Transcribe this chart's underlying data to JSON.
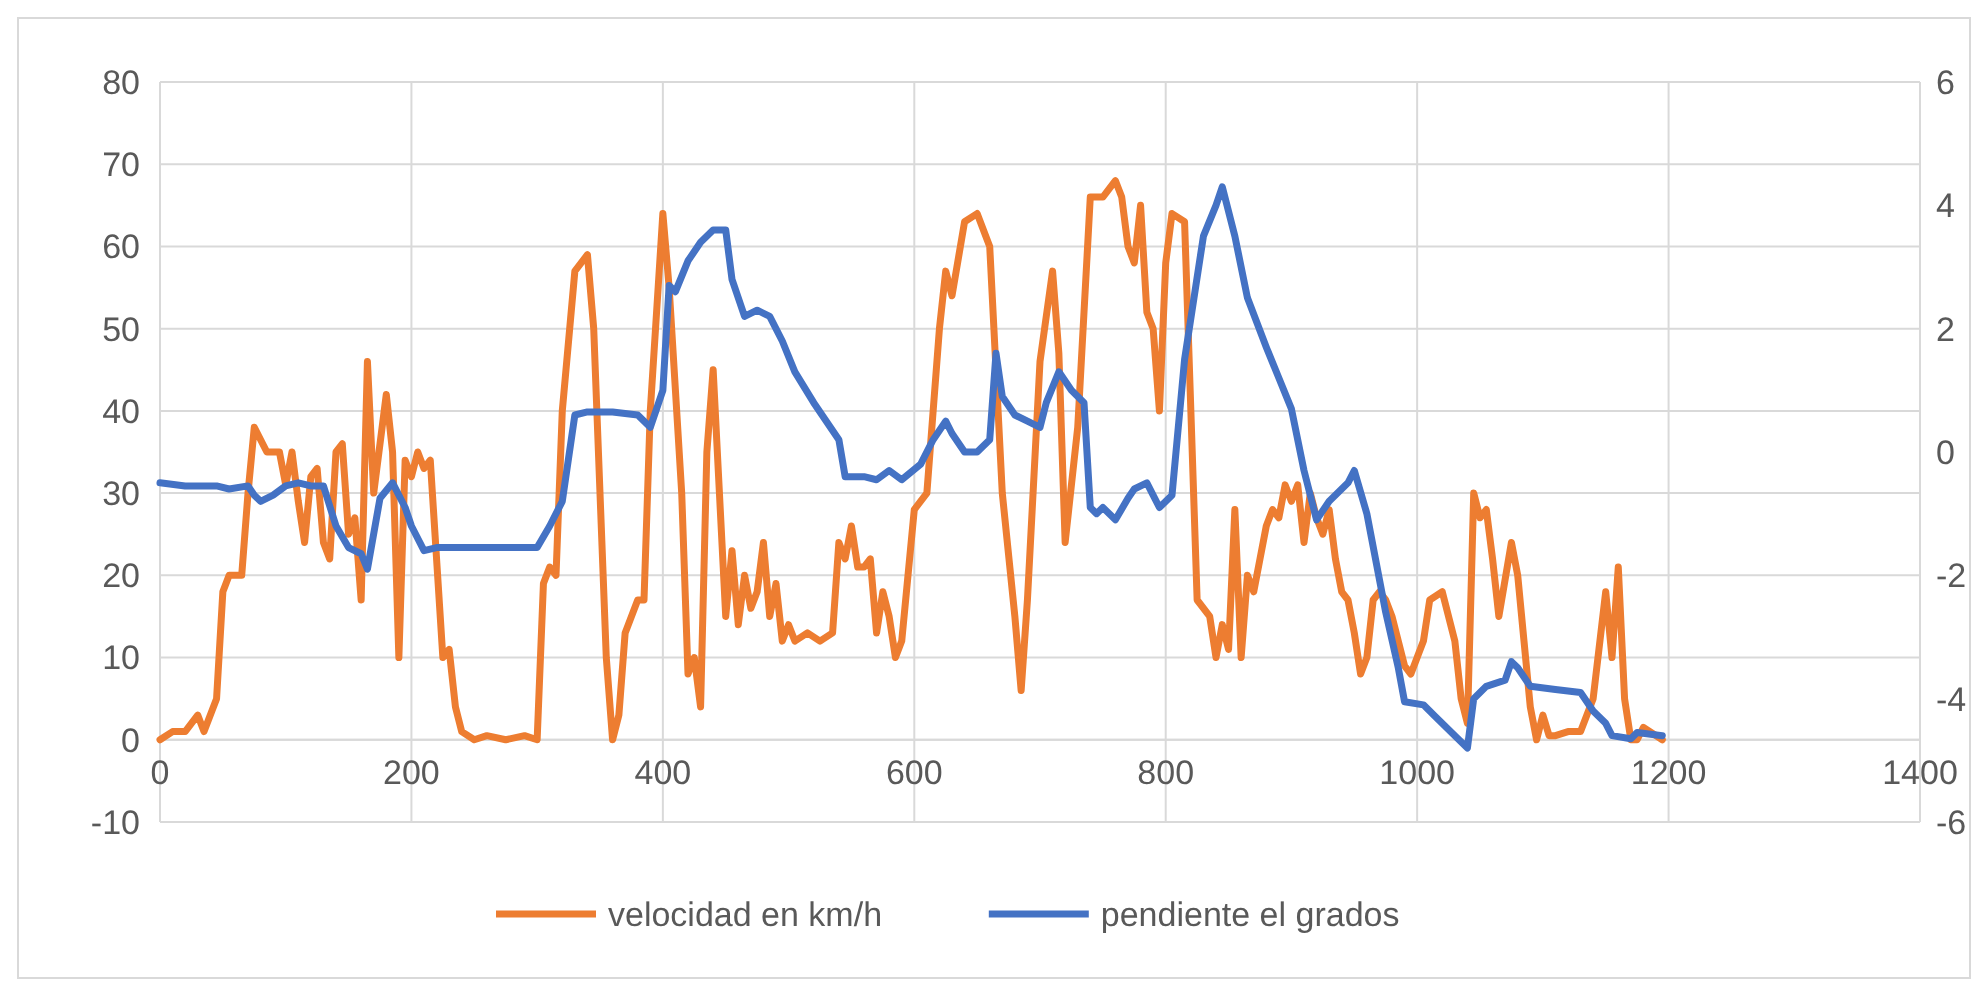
{
  "chart_data": {
    "type": "line",
    "xlim": [
      0,
      1400
    ],
    "xticks": [
      0,
      200,
      400,
      600,
      800,
      1000,
      1200,
      1400
    ],
    "ylim": [
      -10,
      80
    ],
    "yticks": [
      -10,
      0,
      10,
      20,
      30,
      40,
      50,
      60,
      70,
      80
    ],
    "y2lim": [
      -6,
      6
    ],
    "y2ticks": [
      -6,
      -4,
      -2,
      0,
      2,
      4,
      6
    ],
    "grid": true,
    "legend": "bottom",
    "marker": "none",
    "line_style": "solid",
    "series": [
      {
        "name": "velocidad en km/h",
        "color": "#ed7d31",
        "x": [
          0,
          10,
          20,
          30,
          35,
          45,
          50,
          55,
          65,
          70,
          75,
          85,
          95,
          100,
          105,
          110,
          115,
          120,
          125,
          130,
          135,
          140,
          145,
          150,
          155,
          160,
          165,
          170,
          180,
          185,
          190,
          195,
          200,
          205,
          210,
          215,
          225,
          230,
          235,
          240,
          250,
          260,
          275,
          290,
          300,
          305,
          310,
          315,
          320,
          330,
          340,
          345,
          355,
          360,
          365,
          370,
          380,
          385,
          390,
          400,
          405,
          415,
          420,
          425,
          430,
          435,
          440,
          445,
          450,
          455,
          460,
          465,
          470,
          475,
          480,
          485,
          490,
          495,
          500,
          505,
          515,
          525,
          535,
          540,
          545,
          550,
          555,
          560,
          565,
          570,
          575,
          580,
          585,
          590,
          600,
          610,
          620,
          625,
          630,
          640,
          650,
          660,
          670,
          680,
          685,
          690,
          700,
          710,
          715,
          720,
          730,
          740,
          750,
          755,
          760,
          765,
          770,
          775,
          780,
          785,
          790,
          795,
          800,
          805,
          815,
          820,
          825,
          835,
          840,
          845,
          850,
          855,
          860,
          865,
          870,
          875,
          880,
          885,
          890,
          895,
          900,
          905,
          910,
          915,
          920,
          925,
          930,
          935,
          940,
          945,
          950,
          955,
          960,
          965,
          970,
          975,
          980,
          985,
          990,
          995,
          1000,
          1005,
          1010,
          1020,
          1030,
          1035,
          1040,
          1045,
          1050,
          1055,
          1060,
          1065,
          1075,
          1080,
          1085,
          1090,
          1095,
          1100,
          1105,
          1110,
          1120,
          1130,
          1140,
          1150,
          1155,
          1160,
          1165,
          1170,
          1175,
          1180,
          1195
        ],
        "values": [
          0,
          1,
          1,
          3,
          1,
          5,
          18,
          20,
          20,
          30,
          38,
          35,
          35,
          31,
          35,
          29,
          24,
          32,
          33,
          24,
          22,
          35,
          36,
          25,
          27,
          17,
          46,
          30,
          42,
          35,
          10,
          34,
          32,
          35,
          33,
          34,
          10,
          11,
          4,
          1,
          0,
          0.5,
          0,
          0.5,
          0,
          19,
          21,
          20,
          40,
          57,
          59,
          50,
          10,
          0,
          3,
          13,
          17,
          17,
          40,
          64,
          55,
          30,
          8,
          10,
          4,
          35,
          45,
          30,
          15,
          23,
          14,
          20,
          16,
          18,
          24,
          15,
          19,
          12,
          14,
          12,
          13,
          12,
          13,
          24,
          22,
          26,
          21,
          21,
          22,
          13,
          18,
          15,
          10,
          12,
          28,
          30,
          50,
          57,
          54,
          63,
          64,
          60,
          30,
          15,
          6,
          17,
          46,
          57,
          47,
          24,
          38,
          66,
          66,
          67,
          68,
          66,
          60,
          58,
          65,
          52,
          50,
          40,
          58,
          64,
          63,
          40,
          17,
          15,
          10,
          14,
          11,
          28,
          10,
          20,
          18,
          22,
          26,
          28,
          27,
          31,
          29,
          31,
          24,
          30,
          27,
          25,
          28,
          22,
          18,
          17,
          13,
          8,
          10,
          17,
          18,
          17,
          15,
          12,
          9,
          8,
          10,
          12,
          17,
          18,
          12,
          5,
          2,
          30,
          27,
          28,
          22,
          15,
          24,
          20,
          12,
          4,
          0,
          3,
          0.5,
          0.5,
          1,
          1,
          5,
          18,
          10,
          21,
          5,
          0,
          0,
          1.5,
          0
        ]
      },
      {
        "name": "pendiente el grados",
        "color": "#4472c4",
        "axis": "y2",
        "x": [
          0,
          20,
          45,
          55,
          70,
          75,
          80,
          90,
          100,
          110,
          120,
          130,
          140,
          150,
          160,
          165,
          175,
          185,
          195,
          200,
          210,
          220,
          240,
          265,
          300,
          310,
          320,
          330,
          340,
          360,
          380,
          390,
          400,
          405,
          410,
          420,
          430,
          440,
          450,
          455,
          465,
          475,
          485,
          495,
          505,
          520,
          540,
          545,
          560,
          570,
          580,
          590,
          605,
          615,
          625,
          630,
          640,
          650,
          660,
          665,
          670,
          680,
          690,
          700,
          705,
          715,
          725,
          735,
          740,
          745,
          750,
          760,
          770,
          775,
          785,
          795,
          805,
          815,
          830,
          840,
          845,
          855,
          865,
          880,
          890,
          900,
          910,
          920,
          930,
          945,
          950,
          960,
          975,
          985,
          990,
          1005,
          1015,
          1030,
          1040,
          1045,
          1055,
          1070,
          1075,
          1080,
          1090,
          1110,
          1130,
          1140,
          1150,
          1155,
          1170,
          1175,
          1195
        ],
        "values": [
          -0.5,
          -0.55,
          -0.55,
          -0.6,
          -0.55,
          -0.7,
          -0.8,
          -0.7,
          -0.55,
          -0.5,
          -0.55,
          -0.55,
          -1.2,
          -1.55,
          -1.65,
          -1.9,
          -0.75,
          -0.5,
          -0.9,
          -1.2,
          -1.6,
          -1.55,
          -1.55,
          -1.55,
          -1.55,
          -1.2,
          -0.8,
          0.6,
          0.65,
          0.65,
          0.6,
          0.4,
          1.0,
          2.7,
          2.6,
          3.1,
          3.4,
          3.6,
          3.6,
          2.8,
          2.2,
          2.3,
          2.2,
          1.8,
          1.3,
          0.8,
          0.2,
          -0.4,
          -0.4,
          -0.45,
          -0.3,
          -0.45,
          -0.2,
          0.2,
          0.5,
          0.3,
          0.0,
          0.0,
          0.2,
          1.6,
          0.9,
          0.6,
          0.5,
          0.4,
          0.8,
          1.3,
          1.0,
          0.8,
          -0.9,
          -1.0,
          -0.9,
          -1.1,
          -0.75,
          -0.6,
          -0.5,
          -0.9,
          -0.7,
          1.5,
          3.5,
          4.0,
          4.3,
          3.5,
          2.5,
          1.7,
          1.2,
          0.7,
          -0.3,
          -1.1,
          -0.8,
          -0.5,
          -0.3,
          -1.0,
          -2.6,
          -3.5,
          -4.05,
          -4.1,
          -4.3,
          -4.6,
          -4.8,
          -4.0,
          -3.8,
          -3.7,
          -3.4,
          -3.5,
          -3.8,
          -3.85,
          -3.9,
          -4.2,
          -4.4,
          -4.6,
          -4.65,
          -4.55,
          -4.6
        ]
      }
    ]
  }
}
